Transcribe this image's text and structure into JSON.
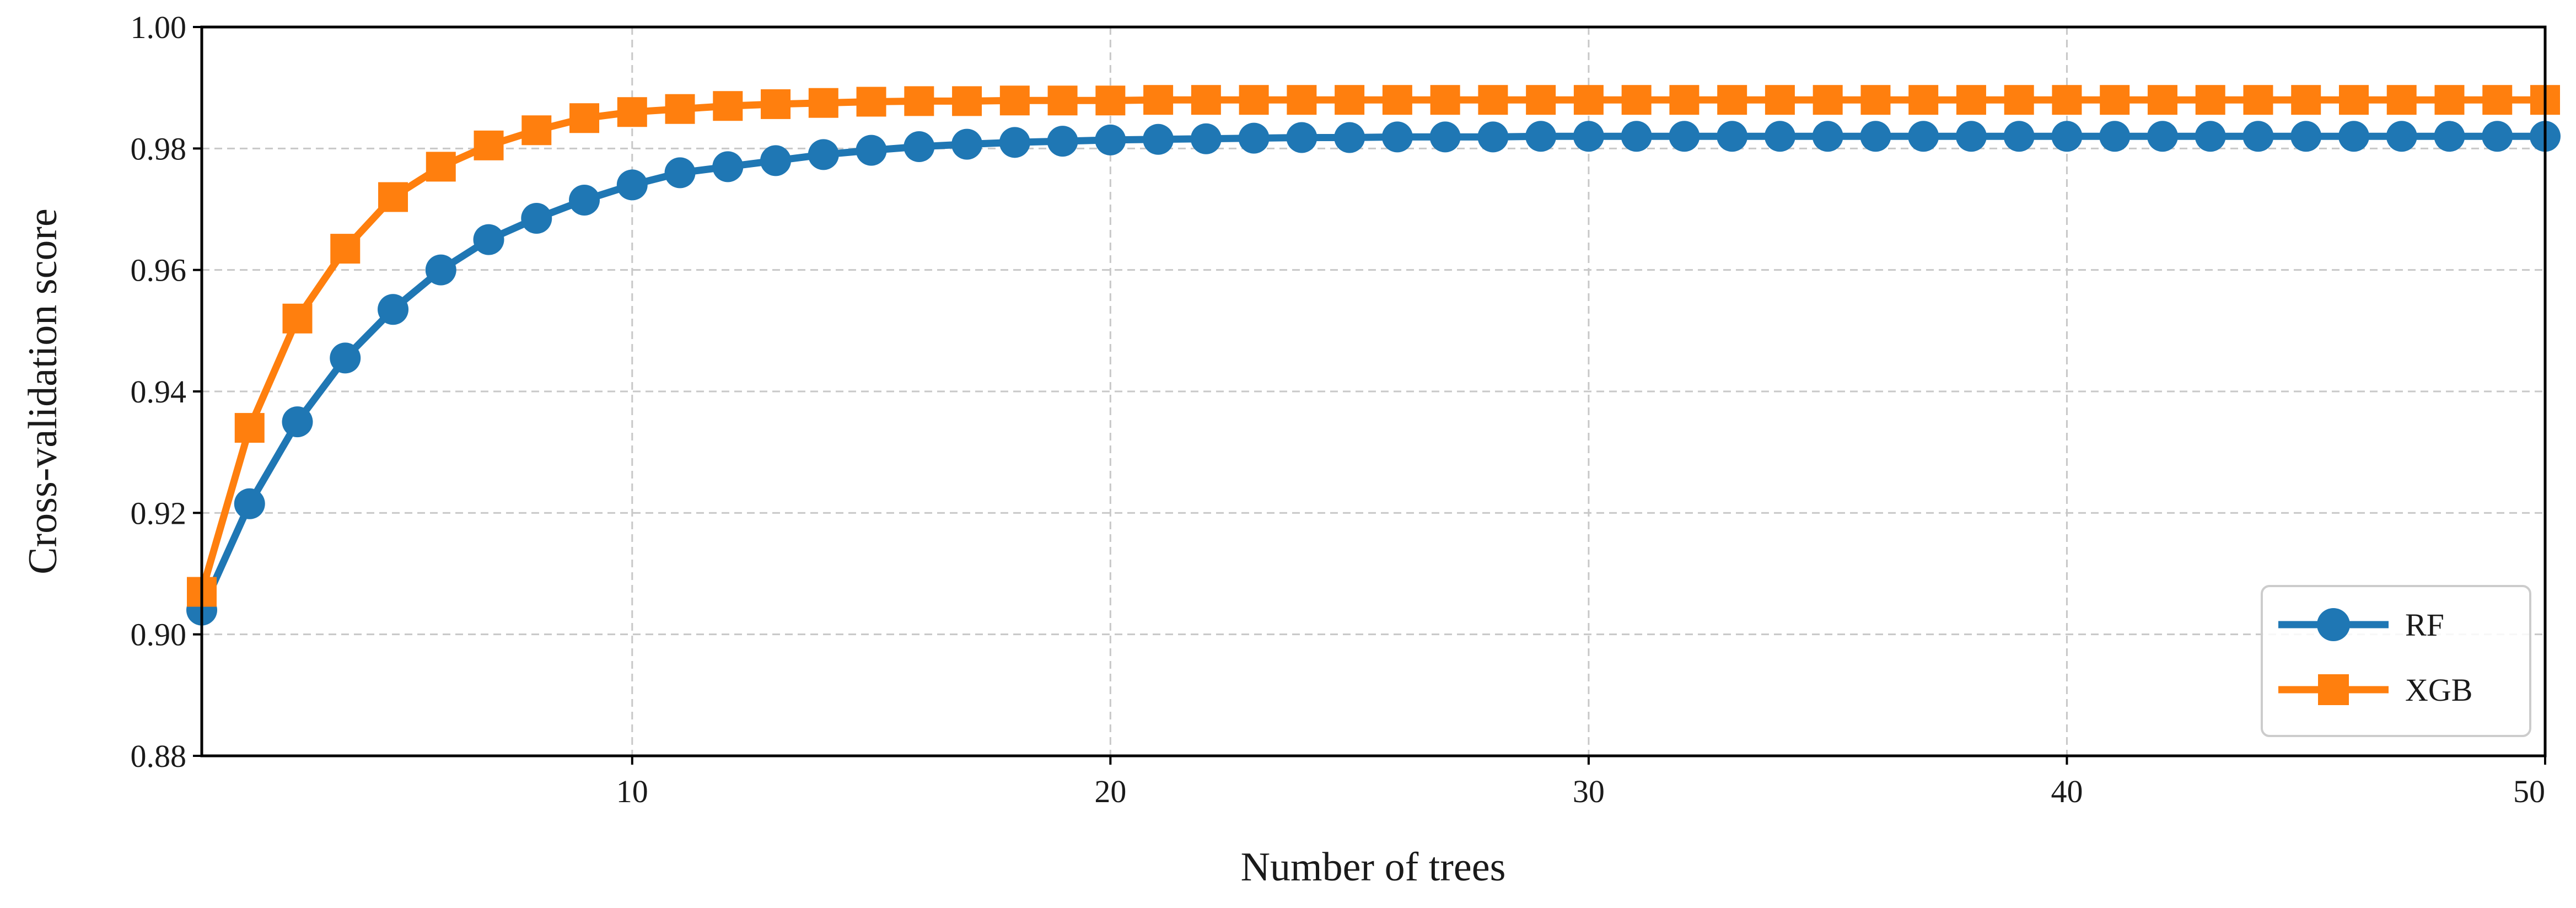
{
  "chart_data": {
    "type": "line",
    "title": "",
    "xlabel": "Number of trees",
    "ylabel": "Cross-validation score",
    "xlim": [
      1,
      50
    ],
    "ylim": [
      0.88,
      1.0
    ],
    "xticks": [
      10,
      20,
      30,
      40,
      50
    ],
    "xtick_labels": [
      "10",
      "20",
      "30",
      "40",
      "50"
    ],
    "yticks": [
      0.88,
      0.9,
      0.92,
      0.94,
      0.96,
      0.98,
      1.0
    ],
    "ytick_labels": [
      "0.88",
      "0.90",
      "0.92",
      "0.94",
      "0.96",
      "0.98",
      "1.00"
    ],
    "grid": true,
    "legend_position": "bottom-right",
    "x": [
      1,
      2,
      3,
      4,
      5,
      6,
      7,
      8,
      9,
      10,
      11,
      12,
      13,
      14,
      15,
      16,
      17,
      18,
      19,
      20,
      21,
      22,
      23,
      24,
      25,
      26,
      27,
      28,
      29,
      30,
      31,
      32,
      33,
      34,
      35,
      36,
      37,
      38,
      39,
      40,
      41,
      42,
      43,
      44,
      45,
      46,
      47,
      48,
      49,
      50
    ],
    "series": [
      {
        "name": "RF",
        "color": "#1f77b4",
        "marker": "circle",
        "values": [
          0.904,
          0.9215,
          0.935,
          0.9455,
          0.9535,
          0.96,
          0.965,
          0.9685,
          0.9715,
          0.974,
          0.976,
          0.977,
          0.978,
          0.979,
          0.9797,
          0.9803,
          0.9807,
          0.981,
          0.9812,
          0.9814,
          0.9815,
          0.9816,
          0.9817,
          0.9818,
          0.9818,
          0.9819,
          0.9819,
          0.9819,
          0.982,
          0.982,
          0.982,
          0.982,
          0.982,
          0.982,
          0.982,
          0.982,
          0.982,
          0.982,
          0.982,
          0.982,
          0.982,
          0.982,
          0.982,
          0.982,
          0.982,
          0.982,
          0.982,
          0.982,
          0.982,
          0.982
        ]
      },
      {
        "name": "XGB",
        "color": "#ff7f0e",
        "marker": "square",
        "values": [
          0.907,
          0.934,
          0.952,
          0.9635,
          0.972,
          0.977,
          0.9805,
          0.983,
          0.985,
          0.986,
          0.9865,
          0.987,
          0.9873,
          0.9875,
          0.9877,
          0.9878,
          0.9878,
          0.9879,
          0.9879,
          0.9879,
          0.988,
          0.988,
          0.988,
          0.988,
          0.988,
          0.988,
          0.988,
          0.988,
          0.988,
          0.988,
          0.988,
          0.988,
          0.988,
          0.988,
          0.988,
          0.988,
          0.988,
          0.988,
          0.988,
          0.988,
          0.988,
          0.988,
          0.988,
          0.988,
          0.988,
          0.988,
          0.988,
          0.988,
          0.988,
          0.988
        ]
      }
    ]
  }
}
